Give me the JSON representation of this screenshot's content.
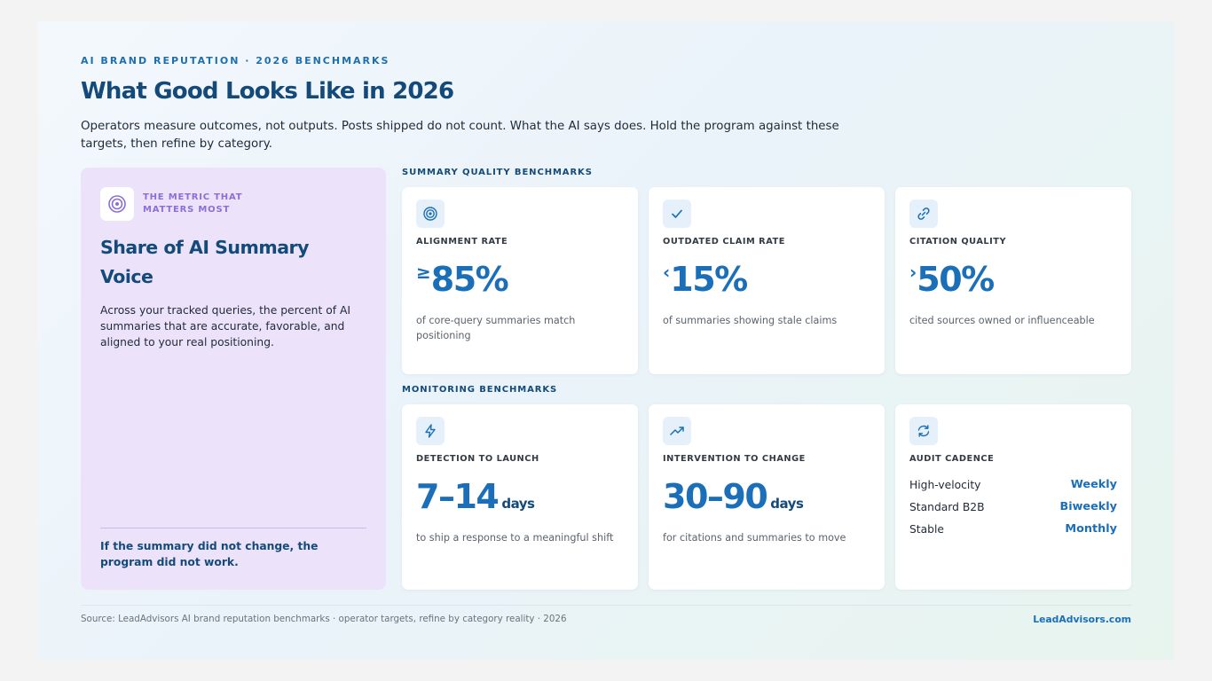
{
  "header": {
    "eyebrow": "AI BRAND REPUTATION · 2026 BENCHMARKS",
    "title": "What Good Looks Like in 2026",
    "lede": "Operators measure outcomes, not outputs. Posts shipped do not count. What the AI says does. Hold the program against these targets, then refine by category."
  },
  "feature": {
    "icon": "target-icon",
    "kicker": "THE METRIC THAT MATTERS MOST",
    "title": "Share of AI Summary Voice",
    "body": "Across your tracked queries, the percent of AI summaries that are accurate, favorable, and aligned to your real positioning.",
    "footer": "If the summary did not change, the program did not work."
  },
  "sections": {
    "summary_label": "SUMMARY QUALITY BENCHMARKS",
    "monitoring_label": "MONITORING BENCHMARKS"
  },
  "summary_cards": [
    {
      "icon": "target-icon",
      "label": "ALIGNMENT RATE",
      "prefix": "≥",
      "value": "85%",
      "desc": "of core-query summaries match positioning"
    },
    {
      "icon": "check-icon",
      "label": "OUTDATED CLAIM RATE",
      "prefix": "‹",
      "value": "15%",
      "desc": "of summaries showing stale claims"
    },
    {
      "icon": "link-icon",
      "label": "CITATION QUALITY",
      "prefix": "›",
      "value": "50%",
      "desc": "cited sources owned or influenceable"
    }
  ],
  "monitoring_cards": [
    {
      "icon": "lightning-icon",
      "label": "DETECTION TO LAUNCH",
      "value": "7–14",
      "unit": "days",
      "desc": "to ship a response to a meaningful shift"
    },
    {
      "icon": "trending-up-icon",
      "label": "INTERVENTION TO CHANGE",
      "value": "30–90",
      "unit": "days",
      "desc": "for citations and summaries to move"
    },
    {
      "icon": "refresh-icon",
      "label": "AUDIT CADENCE",
      "rows": [
        {
          "key": "High-velocity",
          "value": "Weekly"
        },
        {
          "key": "Standard B2B",
          "value": "Biweekly"
        },
        {
          "key": "Stable",
          "value": "Monthly"
        }
      ]
    }
  ],
  "footer": {
    "source": "Source: LeadAdvisors AI brand reputation benchmarks · operator targets, refine by category reality · 2026",
    "brand": "LeadAdvisors.com"
  },
  "colors": {
    "accent_blue": "#1a6fb8",
    "navy": "#134a7a",
    "lavender": "#ece3fa",
    "purple": "#8b6fd6"
  }
}
